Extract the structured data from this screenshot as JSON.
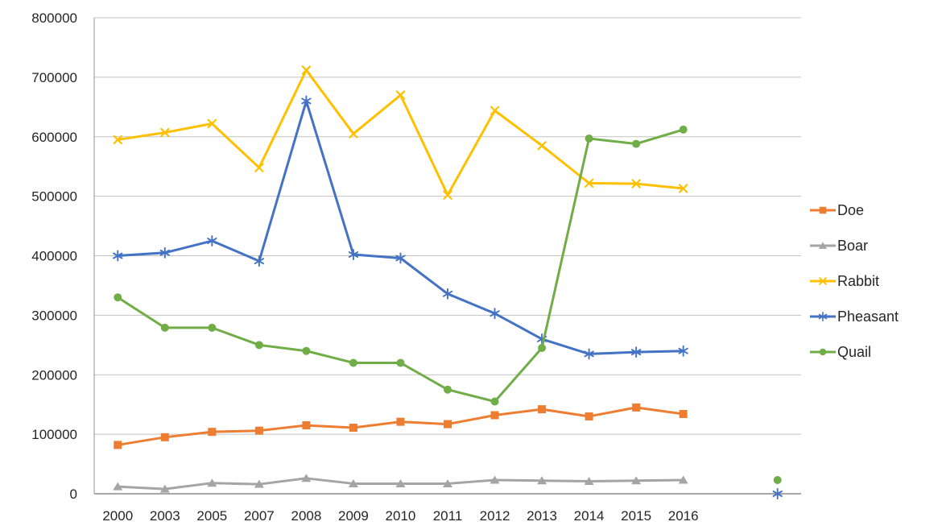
{
  "chart_data": {
    "type": "line",
    "title": "",
    "xlabel": "",
    "ylabel": "",
    "categories": [
      "2000",
      "2003",
      "2005",
      "2007",
      "2008",
      "2009",
      "2010",
      "2011",
      "2012",
      "2013",
      "2014",
      "2015",
      "2016",
      "",
      ""
    ],
    "series": [
      {
        "name": "Doe",
        "color": "#ED7D31",
        "marker": "square",
        "values": [
          82000,
          95000,
          104000,
          106000,
          115000,
          111000,
          121000,
          117000,
          132000,
          142000,
          130000,
          145000,
          134000,
          null,
          null
        ]
      },
      {
        "name": "Boar",
        "color": "#A5A5A5",
        "marker": "triangle",
        "values": [
          12000,
          8000,
          18000,
          16000,
          26000,
          17000,
          17000,
          17000,
          23000,
          22000,
          21000,
          22000,
          23000,
          null,
          null
        ]
      },
      {
        "name": "Rabbit",
        "color": "#FFC000",
        "marker": "x",
        "values": [
          595000,
          607000,
          622000,
          548000,
          712000,
          605000,
          670000,
          502000,
          644000,
          585000,
          522000,
          521000,
          513000,
          null,
          null
        ]
      },
      {
        "name": "Pheasant",
        "color": "#4472C4",
        "marker": "asterisk",
        "values": [
          400000,
          405000,
          425000,
          391000,
          660000,
          402000,
          396000,
          336000,
          303000,
          260000,
          235000,
          238000,
          240000,
          null,
          0
        ]
      },
      {
        "name": "Quail",
        "color": "#70AD47",
        "marker": "circle",
        "values": [
          330000,
          279000,
          279000,
          250000,
          240000,
          220000,
          220000,
          175000,
          155000,
          245000,
          597000,
          588000,
          612000,
          null,
          23000
        ]
      }
    ],
    "ylim": [
      0,
      800000
    ],
    "ytick_interval": 100000,
    "yticks": [
      "0",
      "100000",
      "200000",
      "300000",
      "400000",
      "500000",
      "600000",
      "700000",
      "800000"
    ],
    "grid": "horizontal",
    "legend_position": "right",
    "colors": {
      "gridline": "#C2C2C2",
      "axis_line": "#8A8A8A",
      "plot_border": "#A6A6A6",
      "tick_text": "#262626"
    }
  }
}
